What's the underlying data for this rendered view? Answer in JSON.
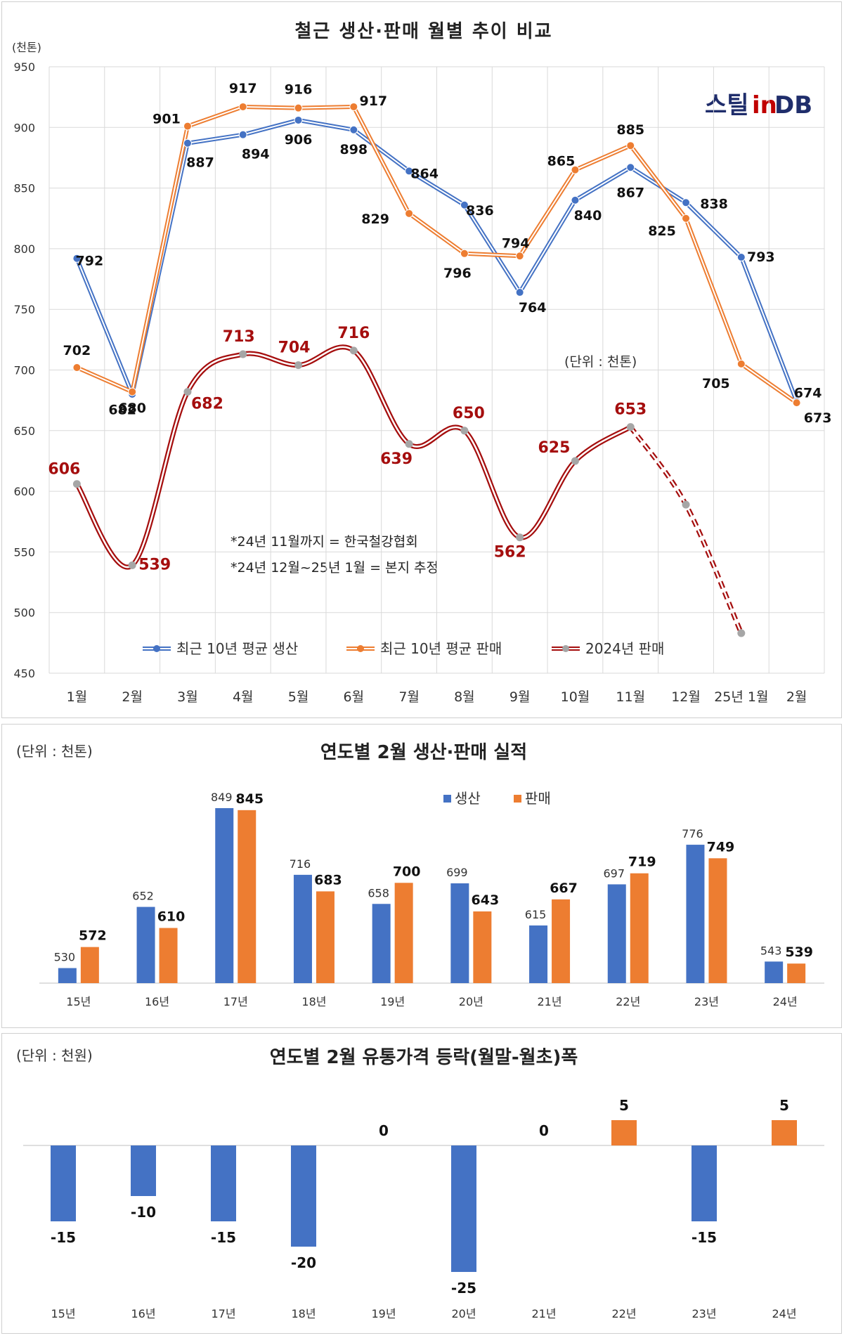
{
  "colors": {
    "production": "#4472C4",
    "sales": "#ED7D31",
    "sales2024": "#A50E0E",
    "marker2024": "#A6A6A6",
    "logo_red": "#C00000",
    "logo_blue": "#1F2D6B"
  },
  "chart1": {
    "title": "철근 생산·판매 월별 추이 비교",
    "unit_label": "(천톤)",
    "unit_note": "(단위 : 천톤)",
    "logo": {
      "part1": "스틸",
      "part2": "in",
      "part3": "DB"
    },
    "notes": [
      "*24년 11월까지 = 한국철강협회",
      "*24년 12월~25년 1월 = 본지 추정"
    ]
  },
  "chart2": {
    "title": "연도별 2월 생산·판매 실적",
    "unit_note": "(단위 : 천톤)"
  },
  "chart3": {
    "title": "연도별 2월 유통가격 등락(월말-월초)폭",
    "unit_note": "(단위 : 천원)"
  },
  "chart_data": [
    {
      "type": "line",
      "title": "철근 생산·판매 월별 추이 비교",
      "ylabel": "(천톤)",
      "ylim": [
        450,
        950
      ],
      "yticks": [
        450,
        500,
        550,
        600,
        650,
        700,
        750,
        800,
        850,
        900,
        950
      ],
      "grid": true,
      "legend_position": "bottom",
      "categories": [
        "1월",
        "2월",
        "3월",
        "4월",
        "5월",
        "6월",
        "7월",
        "8월",
        "9월",
        "10월",
        "11월",
        "12월",
        "25년 1월",
        "2월"
      ],
      "series": [
        {
          "name": "최근 10년 평균 생산",
          "values": [
            792,
            680,
            887,
            894,
            906,
            898,
            864,
            836,
            764,
            840,
            867,
            838,
            793,
            674
          ]
        },
        {
          "name": "최근 10년 평균 판매",
          "values": [
            702,
            682,
            901,
            917,
            916,
            917,
            829,
            796,
            794,
            865,
            885,
            825,
            705,
            673
          ]
        },
        {
          "name": "2024년 판매",
          "values": [
            606,
            539,
            682,
            713,
            704,
            716,
            639,
            650,
            562,
            625,
            653,
            589,
            483,
            null
          ],
          "labeled_count": 11,
          "estimated_from_index": 10
        }
      ]
    },
    {
      "type": "bar",
      "title": "연도별 2월 생산·판매 실적",
      "unit": "(단위 : 천톤)",
      "legend_position": "top",
      "categories": [
        "15년",
        "16년",
        "17년",
        "18년",
        "19년",
        "20년",
        "21년",
        "22년",
        "23년",
        "24년"
      ],
      "series": [
        {
          "name": "생산",
          "values": [
            530,
            652,
            849,
            716,
            658,
            699,
            615,
            697,
            776,
            543
          ]
        },
        {
          "name": "판매",
          "values": [
            572,
            610,
            845,
            683,
            700,
            643,
            667,
            719,
            749,
            539
          ]
        }
      ],
      "ylim": [
        500,
        870
      ]
    },
    {
      "type": "bar",
      "title": "연도별 2월 유통가격 등락(월말-월초)폭",
      "unit": "(단위 : 천원)",
      "categories": [
        "15년",
        "16년",
        "17년",
        "18년",
        "19년",
        "20년",
        "21년",
        "22년",
        "23년",
        "24년"
      ],
      "values": [
        -15,
        -10,
        -15,
        -20,
        0,
        -25,
        0,
        5,
        -15,
        5
      ],
      "ylim": [
        -25,
        5
      ]
    }
  ]
}
